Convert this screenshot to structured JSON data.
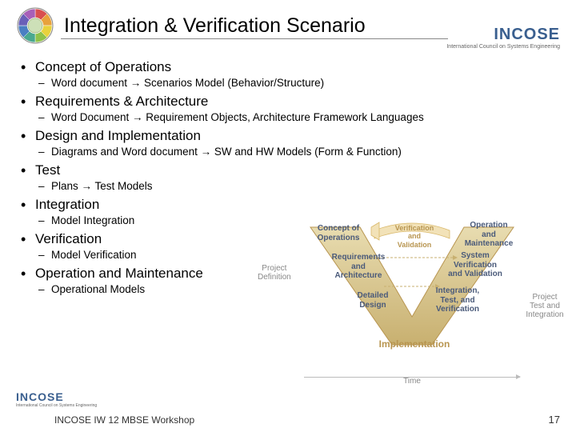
{
  "title": "Integration & Verification Scenario",
  "logo": {
    "brand": "INCOSE",
    "sub": "International Council on Systems Engineering"
  },
  "bullets": [
    {
      "main": "Concept of Operations",
      "sub": "Word document →  Scenarios Model (Behavior/Structure)"
    },
    {
      "main": "Requirements & Architecture",
      "sub": "Word Document →  Requirement Objects, Architecture Framework Languages"
    },
    {
      "main": "Design and Implementation",
      "sub": "Diagrams and Word document  →  SW and HW Models (Form & Function)"
    },
    {
      "main": "Test",
      "sub": "Plans → Test Models"
    },
    {
      "main": "Integration",
      "sub": "Model Integration"
    },
    {
      "main": " Verification",
      "sub": "Model Verification"
    },
    {
      "main": "Operation and Maintenance",
      "sub": "Operational Models"
    }
  ],
  "vmodel": {
    "left_side": "Project\nDefinition",
    "right_side": "Project\nTest and\nIntegration",
    "time": "Time",
    "left_steps": [
      "Concept of\nOperations",
      "Requirements\nand\nArchitecture",
      "Detailed\nDesign"
    ],
    "right_steps": [
      "Operation\nand\nMaintenance",
      "System\nVerification\nand Validation",
      "Integration,\nTest, and\nVerification"
    ],
    "bottom": "Implementation",
    "top_arrow": "Verification\nand\nValidation",
    "colors": {
      "v_fill": "#d9c896",
      "v_stroke": "#b89550",
      "step_text": "#4a5a7a",
      "side_text": "#888888",
      "arrow_fill": "#f2e2b8"
    }
  },
  "footer": {
    "text": "INCOSE IW 12 MBSE Workshop",
    "page": "17"
  },
  "wheel_colors": [
    "#d94f4f",
    "#e8a23c",
    "#e8d23c",
    "#8fc24a",
    "#4aa88f",
    "#4a7fc2",
    "#6a5fb8",
    "#a85fb8"
  ]
}
